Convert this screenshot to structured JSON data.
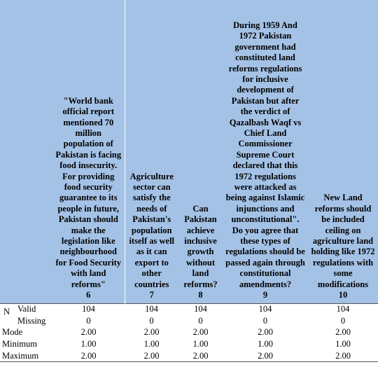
{
  "table": {
    "stub": {
      "group": "N"
    },
    "columns": [
      {
        "text": "\"World bank official report mentioned 70 million population of Pakistan is facing food insecurity. For providing food security guarantee to its people in future, Pakistan should make the legislation like neighbourhood for Food Security with land reforms\"",
        "number": "6"
      },
      {
        "text": "Agriculture sector can satisfy the needs of Pakistan's population itself as well as it can export to other countries",
        "number": "7"
      },
      {
        "text": "Can Pakistan achieve inclusive growth without land reforms?",
        "number": "8"
      },
      {
        "text": "During 1959 And 1972 Pakistan government had constituted land reforms regulations for inclusive development of Pakistan but after the verdict of Qazalbash Waqf vs Chief Land Commissioner Supreme Court declared that this 1972 regulations were attacked as being against Islamic injunctions and unconstitutional\". Do you agree that these types of regulations should be passed again through constitutional amendments?",
        "number": "9"
      },
      {
        "text": "New Land reforms should be included ceiling on agriculture land holding like 1972 regulations with some modifications",
        "number": "10"
      }
    ],
    "rows": [
      {
        "label": "Valid",
        "values": [
          "104",
          "104",
          "104",
          "104",
          "104"
        ]
      },
      {
        "label": "Missing",
        "values": [
          "0",
          "0",
          "0",
          "0",
          "0"
        ]
      },
      {
        "label": "Mode",
        "values": [
          "2.00",
          "2.00",
          "2.00",
          "2.00",
          "2.00"
        ]
      },
      {
        "label": "Minimum",
        "values": [
          "1.00",
          "1.00",
          "1.00",
          "1.00",
          "1.00"
        ]
      },
      {
        "label": "Maximum",
        "values": [
          "2.00",
          "2.00",
          "2.00",
          "2.00",
          "2.00"
        ]
      }
    ]
  }
}
